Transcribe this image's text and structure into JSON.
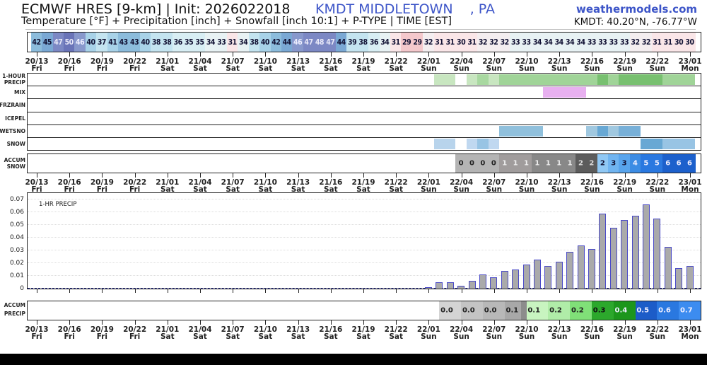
{
  "header": {
    "model": "ECMWF HRES [9-km] | Init: 2026022018",
    "station": "KMDT MIDDLETOWN    , PA",
    "site": "weathermodels.com",
    "subtitle": "Temperature [°F] + Precipitation [inch] + Snowfall [inch 10:1] + P-TYPE | TIME [EST]",
    "coords": "KMDT: 40.20°N, -76.77°W"
  },
  "time_axis": [
    {
      "t": "20/13",
      "d": "Fri"
    },
    {
      "t": "20/16",
      "d": "Fri"
    },
    {
      "t": "20/19",
      "d": "Fri"
    },
    {
      "t": "20/22",
      "d": "Fri"
    },
    {
      "t": "21/01",
      "d": "Sat"
    },
    {
      "t": "21/04",
      "d": "Sat"
    },
    {
      "t": "21/07",
      "d": "Sat"
    },
    {
      "t": "21/10",
      "d": "Sat"
    },
    {
      "t": "21/13",
      "d": "Sat"
    },
    {
      "t": "21/16",
      "d": "Sat"
    },
    {
      "t": "21/19",
      "d": "Sat"
    },
    {
      "t": "21/22",
      "d": "Sat"
    },
    {
      "t": "22/01",
      "d": "Sun"
    },
    {
      "t": "22/04",
      "d": "Sun"
    },
    {
      "t": "22/07",
      "d": "Sun"
    },
    {
      "t": "22/10",
      "d": "Sun"
    },
    {
      "t": "22/13",
      "d": "Sun"
    },
    {
      "t": "22/16",
      "d": "Sun"
    },
    {
      "t": "22/19",
      "d": "Sun"
    },
    {
      "t": "22/22",
      "d": "Sun"
    },
    {
      "t": "23/01",
      "d": "Mon"
    }
  ],
  "row_labels": {
    "precip": [
      "1-HOUR",
      "PRECIP"
    ],
    "mix": "MIX",
    "frzrain": "FRZRAIN",
    "icepel": "ICEPEL",
    "wetsno": "WETSNO",
    "snow": "SNOW",
    "accum_snow": [
      "ACCUM",
      "SNOW"
    ],
    "accum_precip": [
      "ACCUM",
      "PRECIP"
    ]
  },
  "temperature_f": [
    42,
    45,
    47,
    50,
    46,
    40,
    37,
    41,
    43,
    43,
    40,
    38,
    38,
    36,
    35,
    35,
    34,
    33,
    31,
    34,
    38,
    40,
    42,
    44,
    46,
    47,
    48,
    47,
    44,
    39,
    38,
    36,
    34,
    31,
    29,
    29,
    32,
    31,
    31,
    30,
    31,
    32,
    32,
    32,
    33,
    33,
    34,
    34,
    34,
    34,
    34,
    33,
    33,
    33,
    33,
    32,
    32,
    31,
    31,
    30,
    30
  ],
  "ptype_strips": {
    "precip": [
      {
        "from": 37,
        "to": 39,
        "color": "#c8e6c0"
      },
      {
        "from": 40,
        "to": 41,
        "color": "#c8e6c0"
      },
      {
        "from": 41,
        "to": 42,
        "color": "#a8d8a0"
      },
      {
        "from": 42,
        "to": 43,
        "color": "#c8e6c0"
      },
      {
        "from": 43,
        "to": 52,
        "color": "#a0d498"
      },
      {
        "from": 52,
        "to": 53,
        "color": "#78c070"
      },
      {
        "from": 53,
        "to": 54,
        "color": "#a0d498"
      },
      {
        "from": 54,
        "to": 58,
        "color": "#78c070"
      },
      {
        "from": 58,
        "to": 61,
        "color": "#a0d498"
      }
    ],
    "mix": [
      {
        "from": 47,
        "to": 51,
        "color": "#e8b0f0"
      }
    ],
    "frzrain": [],
    "icepel": [],
    "wetsno": [
      {
        "from": 43,
        "to": 47,
        "color": "#90c0dc"
      },
      {
        "from": 51,
        "to": 52,
        "color": "#a0c8e0"
      },
      {
        "from": 52,
        "to": 53,
        "color": "#68a8d4"
      },
      {
        "from": 53,
        "to": 54,
        "color": "#a0c8e0"
      },
      {
        "from": 54,
        "to": 56,
        "color": "#78b0d8"
      }
    ],
    "snow": [
      {
        "from": 37,
        "to": 39,
        "color": "#b8d4ec"
      },
      {
        "from": 40,
        "to": 41,
        "color": "#c0d8f0"
      },
      {
        "from": 41,
        "to": 42,
        "color": "#98c4e4"
      },
      {
        "from": 42,
        "to": 43,
        "color": "#c0d8f0"
      },
      {
        "from": 56,
        "to": 58,
        "color": "#68a8d4"
      },
      {
        "from": 58,
        "to": 61,
        "color": "#98c4e4"
      }
    ]
  },
  "accum_snow": [
    {
      "i": 39,
      "v": "0",
      "bg": "#b4b4b4",
      "fg": "#222"
    },
    {
      "i": 40,
      "v": "0",
      "bg": "#b4b4b4",
      "fg": "#222"
    },
    {
      "i": 41,
      "v": "0",
      "bg": "#b4b4b4",
      "fg": "#222"
    },
    {
      "i": 42,
      "v": "0",
      "bg": "#b4b4b4",
      "fg": "#222"
    },
    {
      "i": 43,
      "v": "1",
      "bg": "#a09c9c",
      "fg": "#eee"
    },
    {
      "i": 44,
      "v": "1",
      "bg": "#a09c9c",
      "fg": "#eee"
    },
    {
      "i": 45,
      "v": "1",
      "bg": "#a09c9c",
      "fg": "#eee"
    },
    {
      "i": 46,
      "v": "1",
      "bg": "#888",
      "fg": "#eee"
    },
    {
      "i": 47,
      "v": "1",
      "bg": "#888",
      "fg": "#eee"
    },
    {
      "i": 48,
      "v": "1",
      "bg": "#888",
      "fg": "#eee"
    },
    {
      "i": 49,
      "v": "1",
      "bg": "#888",
      "fg": "#eee"
    },
    {
      "i": 50,
      "v": "2",
      "bg": "#5c5c5c",
      "fg": "#ddd"
    },
    {
      "i": 51,
      "v": "2",
      "bg": "#5c5c5c",
      "fg": "#ddd"
    },
    {
      "i": 52,
      "v": "2",
      "bg": "#90c8f4",
      "fg": "#113"
    },
    {
      "i": 53,
      "v": "3",
      "bg": "#70b4f0",
      "fg": "#113"
    },
    {
      "i": 54,
      "v": "3",
      "bg": "#58a4ec",
      "fg": "#113"
    },
    {
      "i": 55,
      "v": "4",
      "bg": "#3c8ce4",
      "fg": "#eef"
    },
    {
      "i": 56,
      "v": "5",
      "bg": "#2a78e0",
      "fg": "#eef"
    },
    {
      "i": 57,
      "v": "5",
      "bg": "#2a78e0",
      "fg": "#eef"
    },
    {
      "i": 58,
      "v": "6",
      "bg": "#1c60cc",
      "fg": "#eef"
    },
    {
      "i": 59,
      "v": "6",
      "bg": "#1c60cc",
      "fg": "#eef"
    },
    {
      "i": 60,
      "v": "6",
      "bg": "#1c60cc",
      "fg": "#eef"
    }
  ],
  "accum_precip": [
    {
      "i": 38,
      "v": "0.0",
      "bg": "#d4d4d4",
      "fg": "#222"
    },
    {
      "i": 40,
      "v": "0.0",
      "bg": "#c4c4c4",
      "fg": "#222"
    },
    {
      "i": 42,
      "v": "0.0",
      "bg": "#b8b8b8",
      "fg": "#222"
    },
    {
      "i": 44,
      "v": "0.1",
      "bg": "#a8a8a8",
      "fg": "#222"
    },
    {
      "i": 45,
      "v": "",
      "bg": "#8c8c8c",
      "fg": "#222"
    },
    {
      "i": 46,
      "v": "0.1",
      "bg": "#c8f4c0",
      "fg": "#222"
    },
    {
      "i": 48,
      "v": "0.2",
      "bg": "#b0eca8",
      "fg": "#222"
    },
    {
      "i": 50,
      "v": "0.2",
      "bg": "#80e078",
      "fg": "#222"
    },
    {
      "i": 52,
      "v": "0.3",
      "bg": "#2ca82c",
      "fg": "#111"
    },
    {
      "i": 54,
      "v": "0.4",
      "bg": "#1c961c",
      "fg": "#eef"
    },
    {
      "i": 56,
      "v": "0.5",
      "bg": "#1c5cc8",
      "fg": "#eef"
    },
    {
      "i": 58,
      "v": "0.6",
      "bg": "#2a78e0",
      "fg": "#eef"
    },
    {
      "i": 60,
      "v": "0.7",
      "bg": "#3c8cf0",
      "fg": "#eef"
    }
  ],
  "chart_data": [
    {
      "type": "table",
      "title": "Temperature [°F]",
      "x": [
        "20/13",
        "20/14",
        "20/15",
        "20/16",
        "20/17",
        "20/18",
        "20/19",
        "20/20",
        "20/21",
        "20/22",
        "20/23",
        "21/00",
        "21/01",
        "21/02",
        "21/03",
        "21/04",
        "21/05",
        "21/06",
        "21/07",
        "21/08",
        "21/09",
        "21/10",
        "21/11",
        "21/12",
        "21/13",
        "21/14",
        "21/15",
        "21/16",
        "21/17",
        "21/18",
        "21/19",
        "21/20",
        "21/21",
        "21/22",
        "21/23",
        "22/00",
        "22/01",
        "22/02",
        "22/03",
        "22/04",
        "22/05",
        "22/06",
        "22/07",
        "22/08",
        "22/09",
        "22/10",
        "22/11",
        "22/12",
        "22/13",
        "22/14",
        "22/15",
        "22/16",
        "22/17",
        "22/18",
        "22/19",
        "22/20",
        "22/21",
        "22/22",
        "22/23",
        "23/00",
        "23/01"
      ],
      "values": [
        42,
        45,
        47,
        50,
        46,
        40,
        37,
        41,
        43,
        43,
        40,
        38,
        38,
        36,
        35,
        35,
        34,
        33,
        31,
        34,
        38,
        40,
        42,
        44,
        46,
        47,
        48,
        47,
        44,
        39,
        38,
        36,
        34,
        31,
        29,
        29,
        32,
        31,
        31,
        30,
        31,
        32,
        32,
        32,
        33,
        33,
        34,
        34,
        34,
        34,
        34,
        33,
        33,
        33,
        33,
        32,
        32,
        31,
        31,
        30,
        30
      ]
    },
    {
      "type": "bar",
      "title": "1-HR PRECIP",
      "x": [
        "22/01",
        "22/02",
        "22/03",
        "22/04",
        "22/05",
        "22/06",
        "22/07",
        "22/08",
        "22/09",
        "22/10",
        "22/11",
        "22/12",
        "22/13",
        "22/14",
        "22/15",
        "22/16",
        "22/17",
        "22/18",
        "22/19",
        "22/20",
        "22/21",
        "22/22",
        "22/23",
        "23/00",
        "23/01"
      ],
      "values": [
        0.001,
        0.005,
        0.005,
        0.002,
        0.006,
        0.011,
        0.009,
        0.014,
        0.015,
        0.019,
        0.023,
        0.018,
        0.021,
        0.029,
        0.034,
        0.031,
        0.059,
        0.048,
        0.054,
        0.057,
        0.066,
        0.055,
        0.033,
        0.016,
        0.018
      ],
      "xlabel": "TIME [EST]",
      "ylabel": "inch",
      "ylim": [
        0,
        0.07
      ],
      "yticks": [
        "0",
        "0.01",
        "0.02",
        "0.03",
        "0.04",
        "0.05",
        "0.06",
        "0.07"
      ],
      "grid": true
    },
    {
      "type": "table",
      "title": "ACCUM SNOW [inch 10:1]",
      "x": [
        "22/04",
        "22/05",
        "22/06",
        "22/07",
        "22/08",
        "22/09",
        "22/10",
        "22/11",
        "22/12",
        "22/13",
        "22/14",
        "22/15",
        "22/16",
        "22/17",
        "22/18",
        "22/19",
        "22/20",
        "22/21",
        "22/22",
        "22/23",
        "23/00",
        "23/01"
      ],
      "values": [
        0,
        0,
        0,
        0,
        1,
        1,
        1,
        1,
        1,
        1,
        1,
        2,
        2,
        2,
        3,
        3,
        4,
        5,
        5,
        6,
        6,
        6
      ]
    },
    {
      "type": "table",
      "title": "ACCUM PRECIP [inch]",
      "x": [
        "22/03",
        "22/05",
        "22/07",
        "22/09",
        "22/11",
        "22/13",
        "22/15",
        "22/17",
        "22/19",
        "22/21",
        "22/23",
        "23/01"
      ],
      "values": [
        0.0,
        0.0,
        0.0,
        0.1,
        0.1,
        0.2,
        0.2,
        0.3,
        0.4,
        0.5,
        0.6,
        0.7
      ]
    }
  ]
}
